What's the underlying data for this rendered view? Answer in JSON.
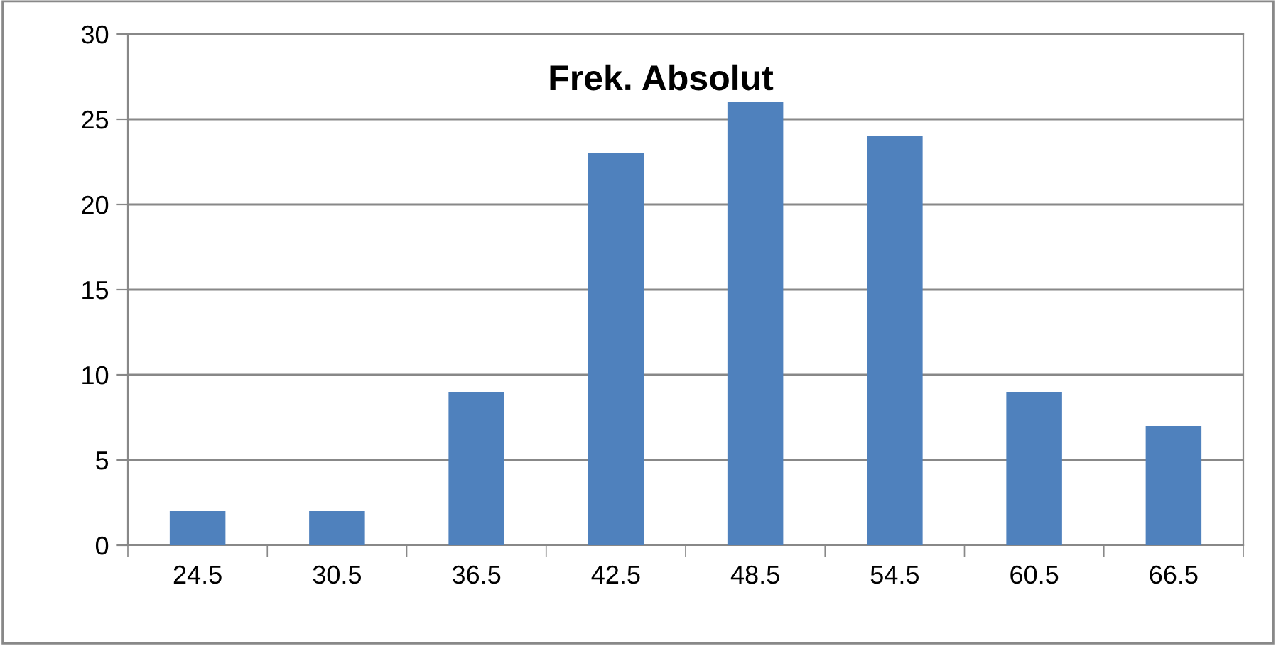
{
  "chart_data": {
    "type": "bar",
    "title": "Frek. Absolut",
    "categories": [
      "24.5",
      "30.5",
      "36.5",
      "42.5",
      "48.5",
      "54.5",
      "60.5",
      "66.5"
    ],
    "values": [
      2,
      2,
      9,
      23,
      26,
      24,
      9,
      7
    ],
    "color": "#4f81bd",
    "ylim": [
      0,
      30
    ],
    "yticks": [
      0,
      5,
      10,
      15,
      20,
      25,
      30
    ],
    "grid": "y",
    "legend": false
  }
}
